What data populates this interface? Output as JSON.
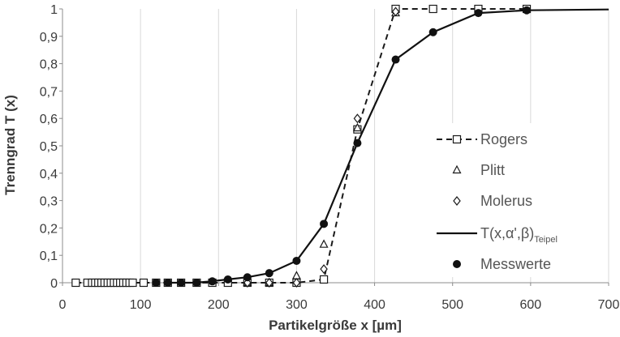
{
  "chart_data": {
    "type": "scatter",
    "xlabel": "Partikelgröße x [µm]",
    "ylabel": "Trenngrad  T (x)",
    "xlim": [
      0,
      700
    ],
    "ylim": [
      0,
      1
    ],
    "xticks": [
      0,
      100,
      200,
      300,
      400,
      500,
      600,
      700
    ],
    "yticks": [
      0,
      0.1,
      0.2,
      0.3,
      0.4,
      0.5,
      0.6,
      0.7,
      0.8,
      0.9,
      1
    ],
    "xtick_labels": [
      "0",
      "100",
      "200",
      "300",
      "400",
      "500",
      "600",
      "700"
    ],
    "ytick_labels": [
      "0",
      "0,1",
      "0,2",
      "0,3",
      "0,4",
      "0,5",
      "0,6",
      "0,7",
      "0,8",
      "0,9",
      "1"
    ],
    "grid": "vertical",
    "legend_position": "right",
    "series": [
      {
        "name": "Rogers",
        "style": "dashed-line-open-square",
        "x": [
          17,
          32,
          38,
          42,
          46,
          50,
          54,
          58,
          62,
          66,
          70,
          74,
          78,
          82,
          86,
          90,
          104,
          120,
          135,
          152,
          172,
          192,
          212,
          237,
          265,
          300,
          335,
          378,
          427,
          475,
          533,
          595
        ],
        "y": [
          0,
          0,
          0,
          0,
          0,
          0,
          0,
          0,
          0,
          0,
          0,
          0,
          0,
          0,
          0,
          0,
          0,
          0,
          0,
          0,
          0,
          0,
          0,
          0,
          0,
          0,
          0.012,
          0.56,
          1.0,
          1.0,
          1.0,
          1.0
        ]
      },
      {
        "name": "Plitt",
        "style": "open-triangle",
        "x": [
          237,
          265,
          300,
          335,
          378,
          427
        ],
        "y": [
          0,
          0,
          0.025,
          0.14,
          0.565,
          0.985
        ]
      },
      {
        "name": "Molerus",
        "style": "open-diamond",
        "x": [
          237,
          265,
          300,
          335,
          378,
          427
        ],
        "y": [
          0,
          0,
          0,
          0.05,
          0.6,
          0.99
        ]
      },
      {
        "name": "T(x,α',β)",
        "name_subscript": "Teipel",
        "style": "solid-line",
        "x": [
          130,
          150,
          170,
          190,
          212,
          237,
          265,
          300,
          335,
          378,
          427,
          475,
          533,
          595,
          700
        ],
        "y": [
          0,
          0,
          0,
          0.005,
          0.012,
          0.02,
          0.035,
          0.08,
          0.215,
          0.51,
          0.815,
          0.915,
          0.985,
          0.995,
          0.998
        ]
      },
      {
        "name": "Messwerte",
        "style": "filled-circle",
        "x": [
          120,
          135,
          152,
          172,
          192,
          212,
          237,
          265,
          300,
          335,
          378,
          427,
          475,
          533,
          595
        ],
        "y": [
          0,
          0,
          0,
          0,
          0.005,
          0.012,
          0.02,
          0.035,
          0.08,
          0.215,
          0.51,
          0.815,
          0.915,
          0.985,
          0.995
        ]
      }
    ]
  }
}
